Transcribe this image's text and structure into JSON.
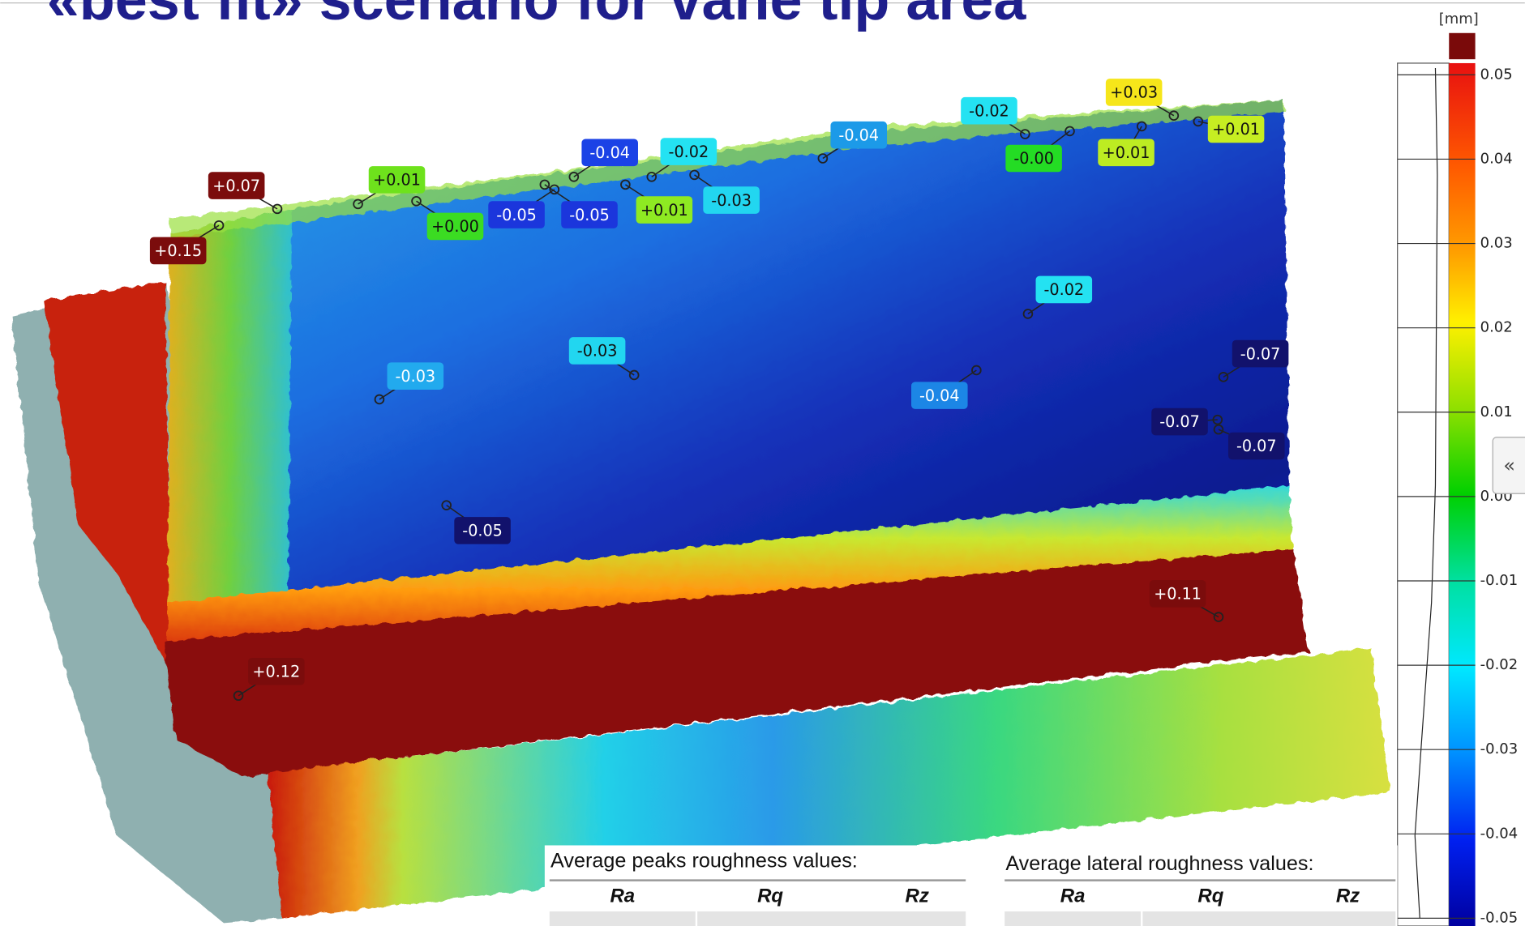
{
  "header": {
    "title": "«best fit» scenario for vane tip area"
  },
  "color_scale": {
    "unit": "[mm]",
    "ticks": [
      0.05,
      0.04,
      0.03,
      0.02,
      0.01,
      {
        "value": 0,
        "label": "0.00"
      },
      -0.01,
      -0.02,
      -0.03,
      -0.04,
      -0.05
    ]
  },
  "annotations": [
    {
      "label": "+0.07",
      "color": "#7b0c0c"
    },
    {
      "label": "+0.15",
      "color": "#7b0c0c"
    },
    {
      "label": "+0.01",
      "color": "#6ee21c"
    },
    {
      "label": "+0.00",
      "color": "#3bdc22"
    },
    {
      "label": "-0.05",
      "color": "#1b36dc"
    },
    {
      "label": "-0.04",
      "color": "#1b42e6"
    },
    {
      "label": "-0.05",
      "color": "#1b36dc"
    },
    {
      "label": "-0.02",
      "color": "#24e2f2"
    },
    {
      "label": "+0.01",
      "color": "#8eea22"
    },
    {
      "label": "-0.03",
      "color": "#22d6f0"
    },
    {
      "label": "-0.04",
      "color": "#1c9ae8"
    },
    {
      "label": "-0.02",
      "color": "#24e2f2"
    },
    {
      "label": "-0.00",
      "color": "#24dc24"
    },
    {
      "label": "+0.03",
      "color": "#f6e61a"
    },
    {
      "label": "+0.01",
      "color": "#bdec22"
    },
    {
      "label": "+0.01",
      "color": "#c6ee22"
    },
    {
      "label": "-0.02",
      "color": "#24e2f2"
    },
    {
      "label": "-0.03",
      "color": "#22d6f0"
    },
    {
      "label": "-0.03",
      "color": "#22aaee"
    },
    {
      "label": "-0.04",
      "color": "#1c86e6"
    },
    {
      "label": "-0.07",
      "color": "#12126c"
    },
    {
      "label": "-0.07",
      "color": "#12126c"
    },
    {
      "label": "-0.07",
      "color": "#12126c"
    },
    {
      "label": "-0.05",
      "color": "#12126c"
    },
    {
      "label": "+0.11",
      "color": "#7b0c0c"
    },
    {
      "label": "+0.12",
      "color": "#7b0c0c"
    }
  ],
  "tables": [
    {
      "title": "Average peaks roughness values:",
      "columns": [
        "Ra",
        "Rq",
        "Rz"
      ]
    },
    {
      "title": "Average lateral roughness values:",
      "columns": [
        "Ra",
        "Rq",
        "Rz"
      ]
    }
  ],
  "side_tab": {
    "label": "«"
  }
}
